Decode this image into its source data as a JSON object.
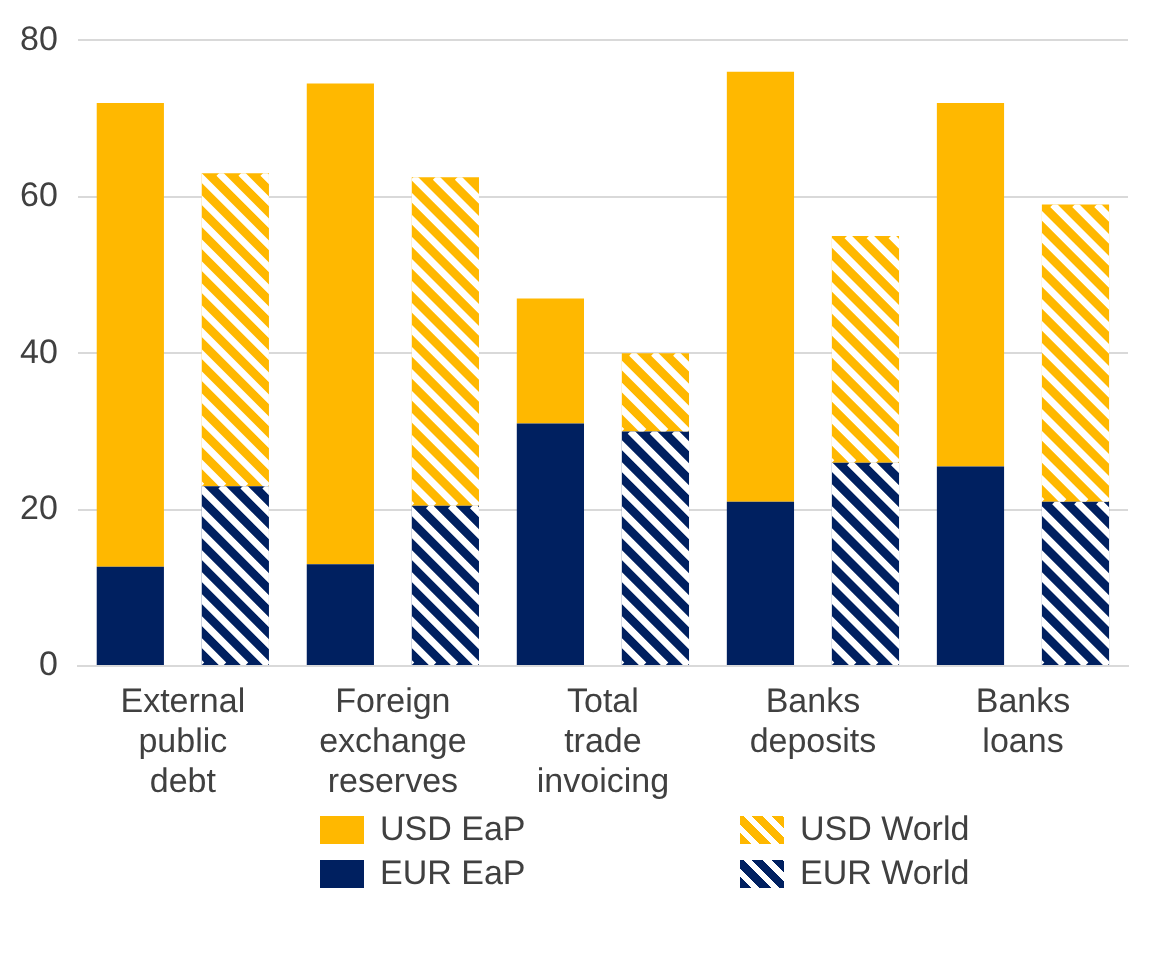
{
  "chart_data": {
    "type": "bar",
    "stacked": true,
    "categories": [
      "External public debt",
      null,
      "Foreign exchange reserves",
      null,
      "Total trade invoicing",
      null,
      "Banks deposits",
      null,
      "Banks loans",
      null
    ],
    "series": [
      {
        "name": "EUR EaP",
        "color": "#002060",
        "values": [
          12.7,
          null,
          13,
          null,
          31,
          null,
          21,
          null,
          25.5,
          null
        ]
      },
      {
        "name": "USD EaP",
        "color": "#ffb800",
        "values": [
          59.3,
          null,
          61.5,
          null,
          16,
          null,
          55,
          null,
          46.5,
          null
        ]
      },
      {
        "name": "EUR World",
        "color": "#002060",
        "values": [
          null,
          23,
          null,
          20.5,
          null,
          30,
          null,
          26,
          null,
          21
        ]
      },
      {
        "name": "USD World",
        "color": "#ffb800",
        "values": [
          null,
          40,
          null,
          42,
          null,
          10,
          null,
          29,
          null,
          38
        ]
      }
    ],
    "ylim": [
      0,
      80
    ],
    "yticks": [
      0,
      20,
      40,
      60,
      80
    ],
    "grid": "y",
    "legend": "bottom"
  }
}
